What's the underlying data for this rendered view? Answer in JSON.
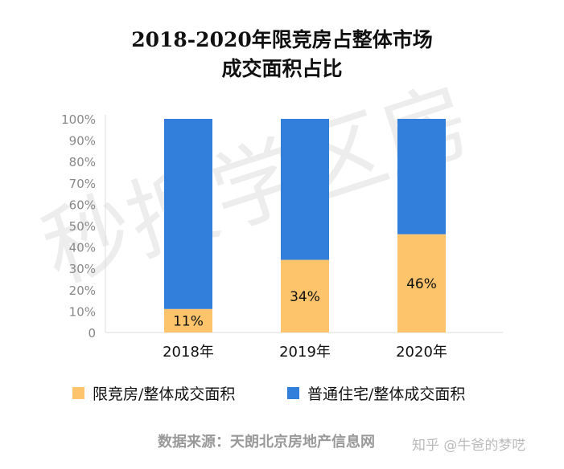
{
  "chart_data": {
    "type": "bar",
    "stacked": true,
    "title_lines": [
      "2018-2020年限竞房占整体市场",
      "成交面积占比"
    ],
    "categories": [
      "2018年",
      "2019年",
      "2020年"
    ],
    "series": [
      {
        "name": "限竞房/整体成交面积",
        "values": [
          11,
          34,
          46
        ],
        "labels": [
          "11%",
          "34%",
          "46%"
        ],
        "color": "#FDC46B"
      },
      {
        "name": "普通住宅/整体成交面积",
        "values": [
          89,
          66,
          54
        ],
        "color": "#327EDB"
      }
    ],
    "ylim": [
      0,
      100
    ],
    "yticks": [
      "0",
      "10%",
      "20%",
      "30%",
      "40%",
      "50%",
      "60%",
      "70%",
      "80%",
      "90%",
      "100%"
    ],
    "grid": false,
    "legend": "bottom"
  },
  "source": "数据来源：天朗北京房地产信息网",
  "credit": "知乎 @牛爸的梦呓",
  "watermark": "秒搜学区房"
}
